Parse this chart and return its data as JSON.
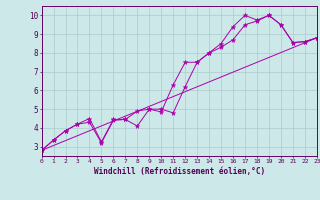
{
  "background_color": "#cce8e8",
  "grid_color": "#aacccc",
  "line_color": "#aa00aa",
  "xlabel": "Windchill (Refroidissement éolien,°C)",
  "xlim": [
    0,
    23
  ],
  "ylim": [
    2.5,
    10.5
  ],
  "xticks": [
    0,
    1,
    2,
    3,
    4,
    5,
    6,
    7,
    8,
    9,
    10,
    11,
    12,
    13,
    14,
    15,
    16,
    17,
    18,
    19,
    20,
    21,
    22,
    23
  ],
  "yticks": [
    3,
    4,
    5,
    6,
    7,
    8,
    9,
    10
  ],
  "series": [
    {
      "x": [
        0,
        1,
        2,
        3,
        4,
        5,
        6,
        7,
        8,
        9,
        10,
        11,
        12,
        13,
        14,
        15,
        16,
        17,
        18,
        19,
        20,
        21,
        22,
        23
      ],
      "y": [
        2.8,
        3.35,
        3.85,
        4.2,
        4.5,
        3.25,
        4.45,
        4.45,
        4.1,
        5.0,
        4.85,
        6.3,
        7.5,
        7.5,
        8.0,
        8.5,
        9.4,
        10.0,
        9.75,
        10.0,
        9.5,
        8.55,
        8.6,
        8.8
      ],
      "marker": "*",
      "markersize": 3.5
    },
    {
      "x": [
        0,
        1,
        2,
        3,
        4,
        5,
        6,
        7,
        8,
        9,
        10,
        11,
        12,
        13,
        14,
        15,
        16,
        17,
        18,
        19,
        20,
        21,
        22,
        23
      ],
      "y": [
        2.8,
        3.35,
        3.85,
        4.2,
        4.3,
        3.2,
        4.4,
        4.45,
        4.9,
        5.0,
        5.0,
        4.8,
        6.2,
        7.5,
        8.0,
        8.3,
        8.7,
        9.5,
        9.7,
        10.0,
        9.5,
        8.55,
        8.6,
        8.8
      ],
      "marker": "*",
      "markersize": 3.5
    },
    {
      "x": [
        0,
        23
      ],
      "y": [
        2.8,
        8.8
      ],
      "marker": null,
      "markersize": 0
    }
  ]
}
